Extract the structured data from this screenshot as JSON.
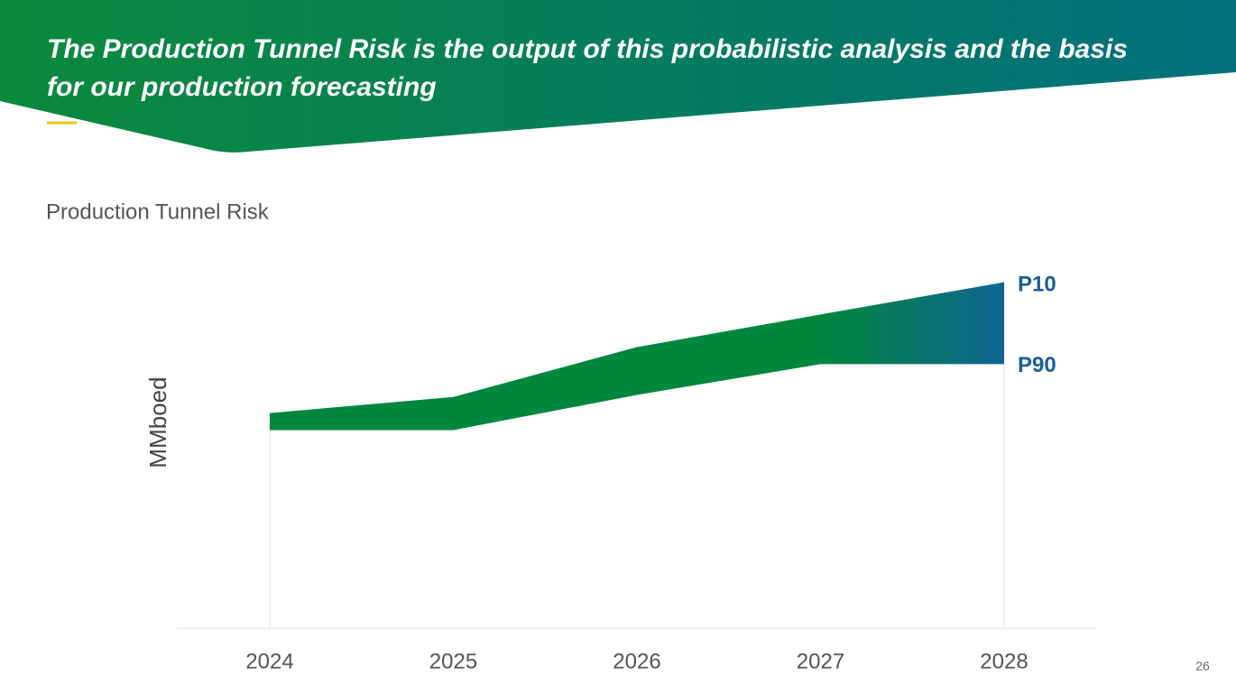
{
  "header": {
    "title_lines": [
      "The Production Tunnel Risk is the output of this probabilistic analysis and the basis",
      "for our production forecasting"
    ]
  },
  "page_number": "26",
  "chart_data": {
    "type": "band",
    "title": "Production Tunnel Risk",
    "y_label": "MMboed",
    "categories": [
      "2024",
      "2025",
      "2026",
      "2027",
      "2028"
    ],
    "series": [
      {
        "name": "P10",
        "color": "#1a5e9a",
        "values": [
          58.6,
          63.0,
          76.6,
          85.5,
          94.3
        ]
      },
      {
        "name": "P90",
        "color": "#1a5e9a",
        "values": [
          54.2,
          54.2,
          63.8,
          72.2,
          72.2
        ]
      }
    ],
    "band_colors": [
      "#00873e",
      "#00873e",
      "#00873e",
      "#00873e",
      "#0f6592"
    ],
    "ylim": [
      0,
      100
    ]
  }
}
